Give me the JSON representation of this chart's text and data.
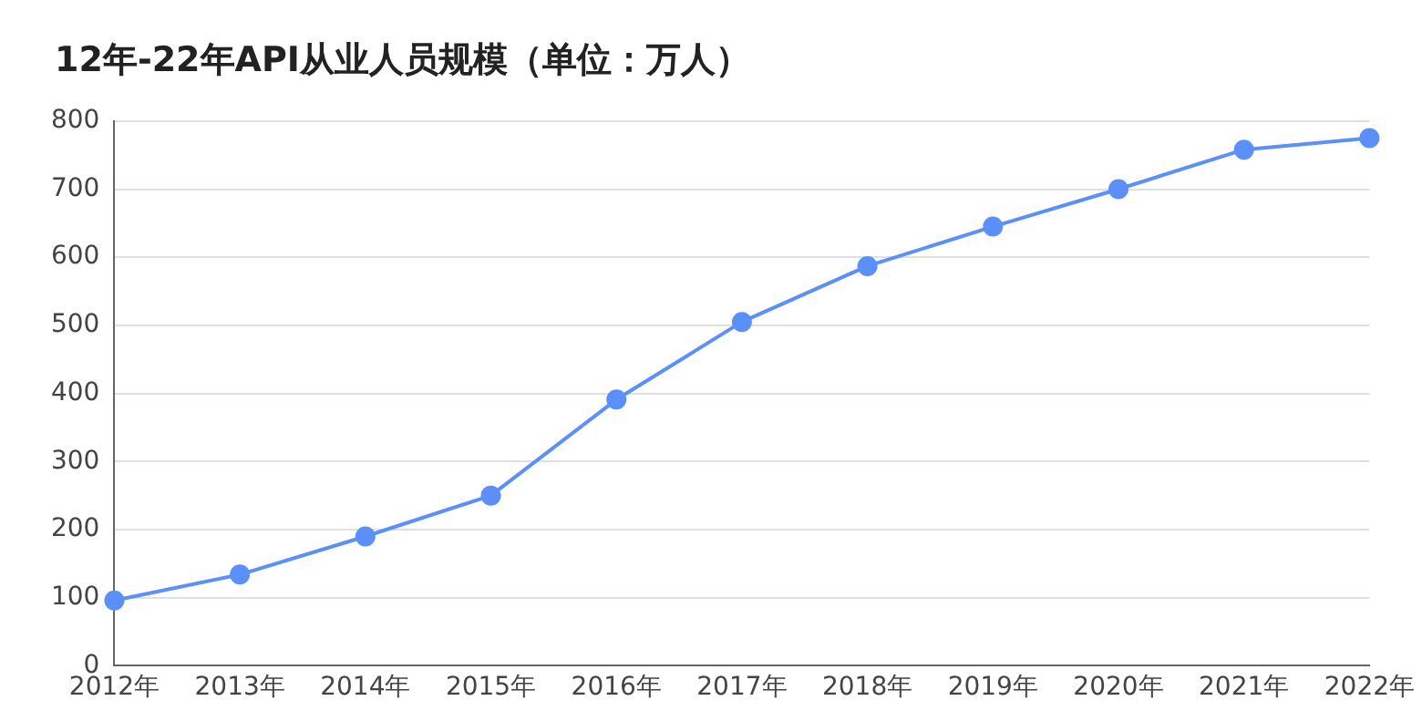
{
  "chart_data": {
    "type": "line",
    "title": "12年-22年API从业人员规模（单位：万人）",
    "categories": [
      "2012年",
      "2013年",
      "2014年",
      "2015年",
      "2016年",
      "2017年",
      "2018年",
      "2019年",
      "2020年",
      "2021年",
      "2022年"
    ],
    "series": [
      {
        "color": "#5b8ff9",
        "values": [
          96,
          134,
          190,
          250,
          391,
          505,
          587,
          645,
          700,
          758,
          775
        ]
      }
    ],
    "ylim": [
      0,
      800
    ],
    "yticks": [
      0,
      100,
      200,
      300,
      400,
      500,
      600,
      700,
      800
    ],
    "grid": "y",
    "legend": false,
    "marker": "circle",
    "line_style": "solid"
  }
}
